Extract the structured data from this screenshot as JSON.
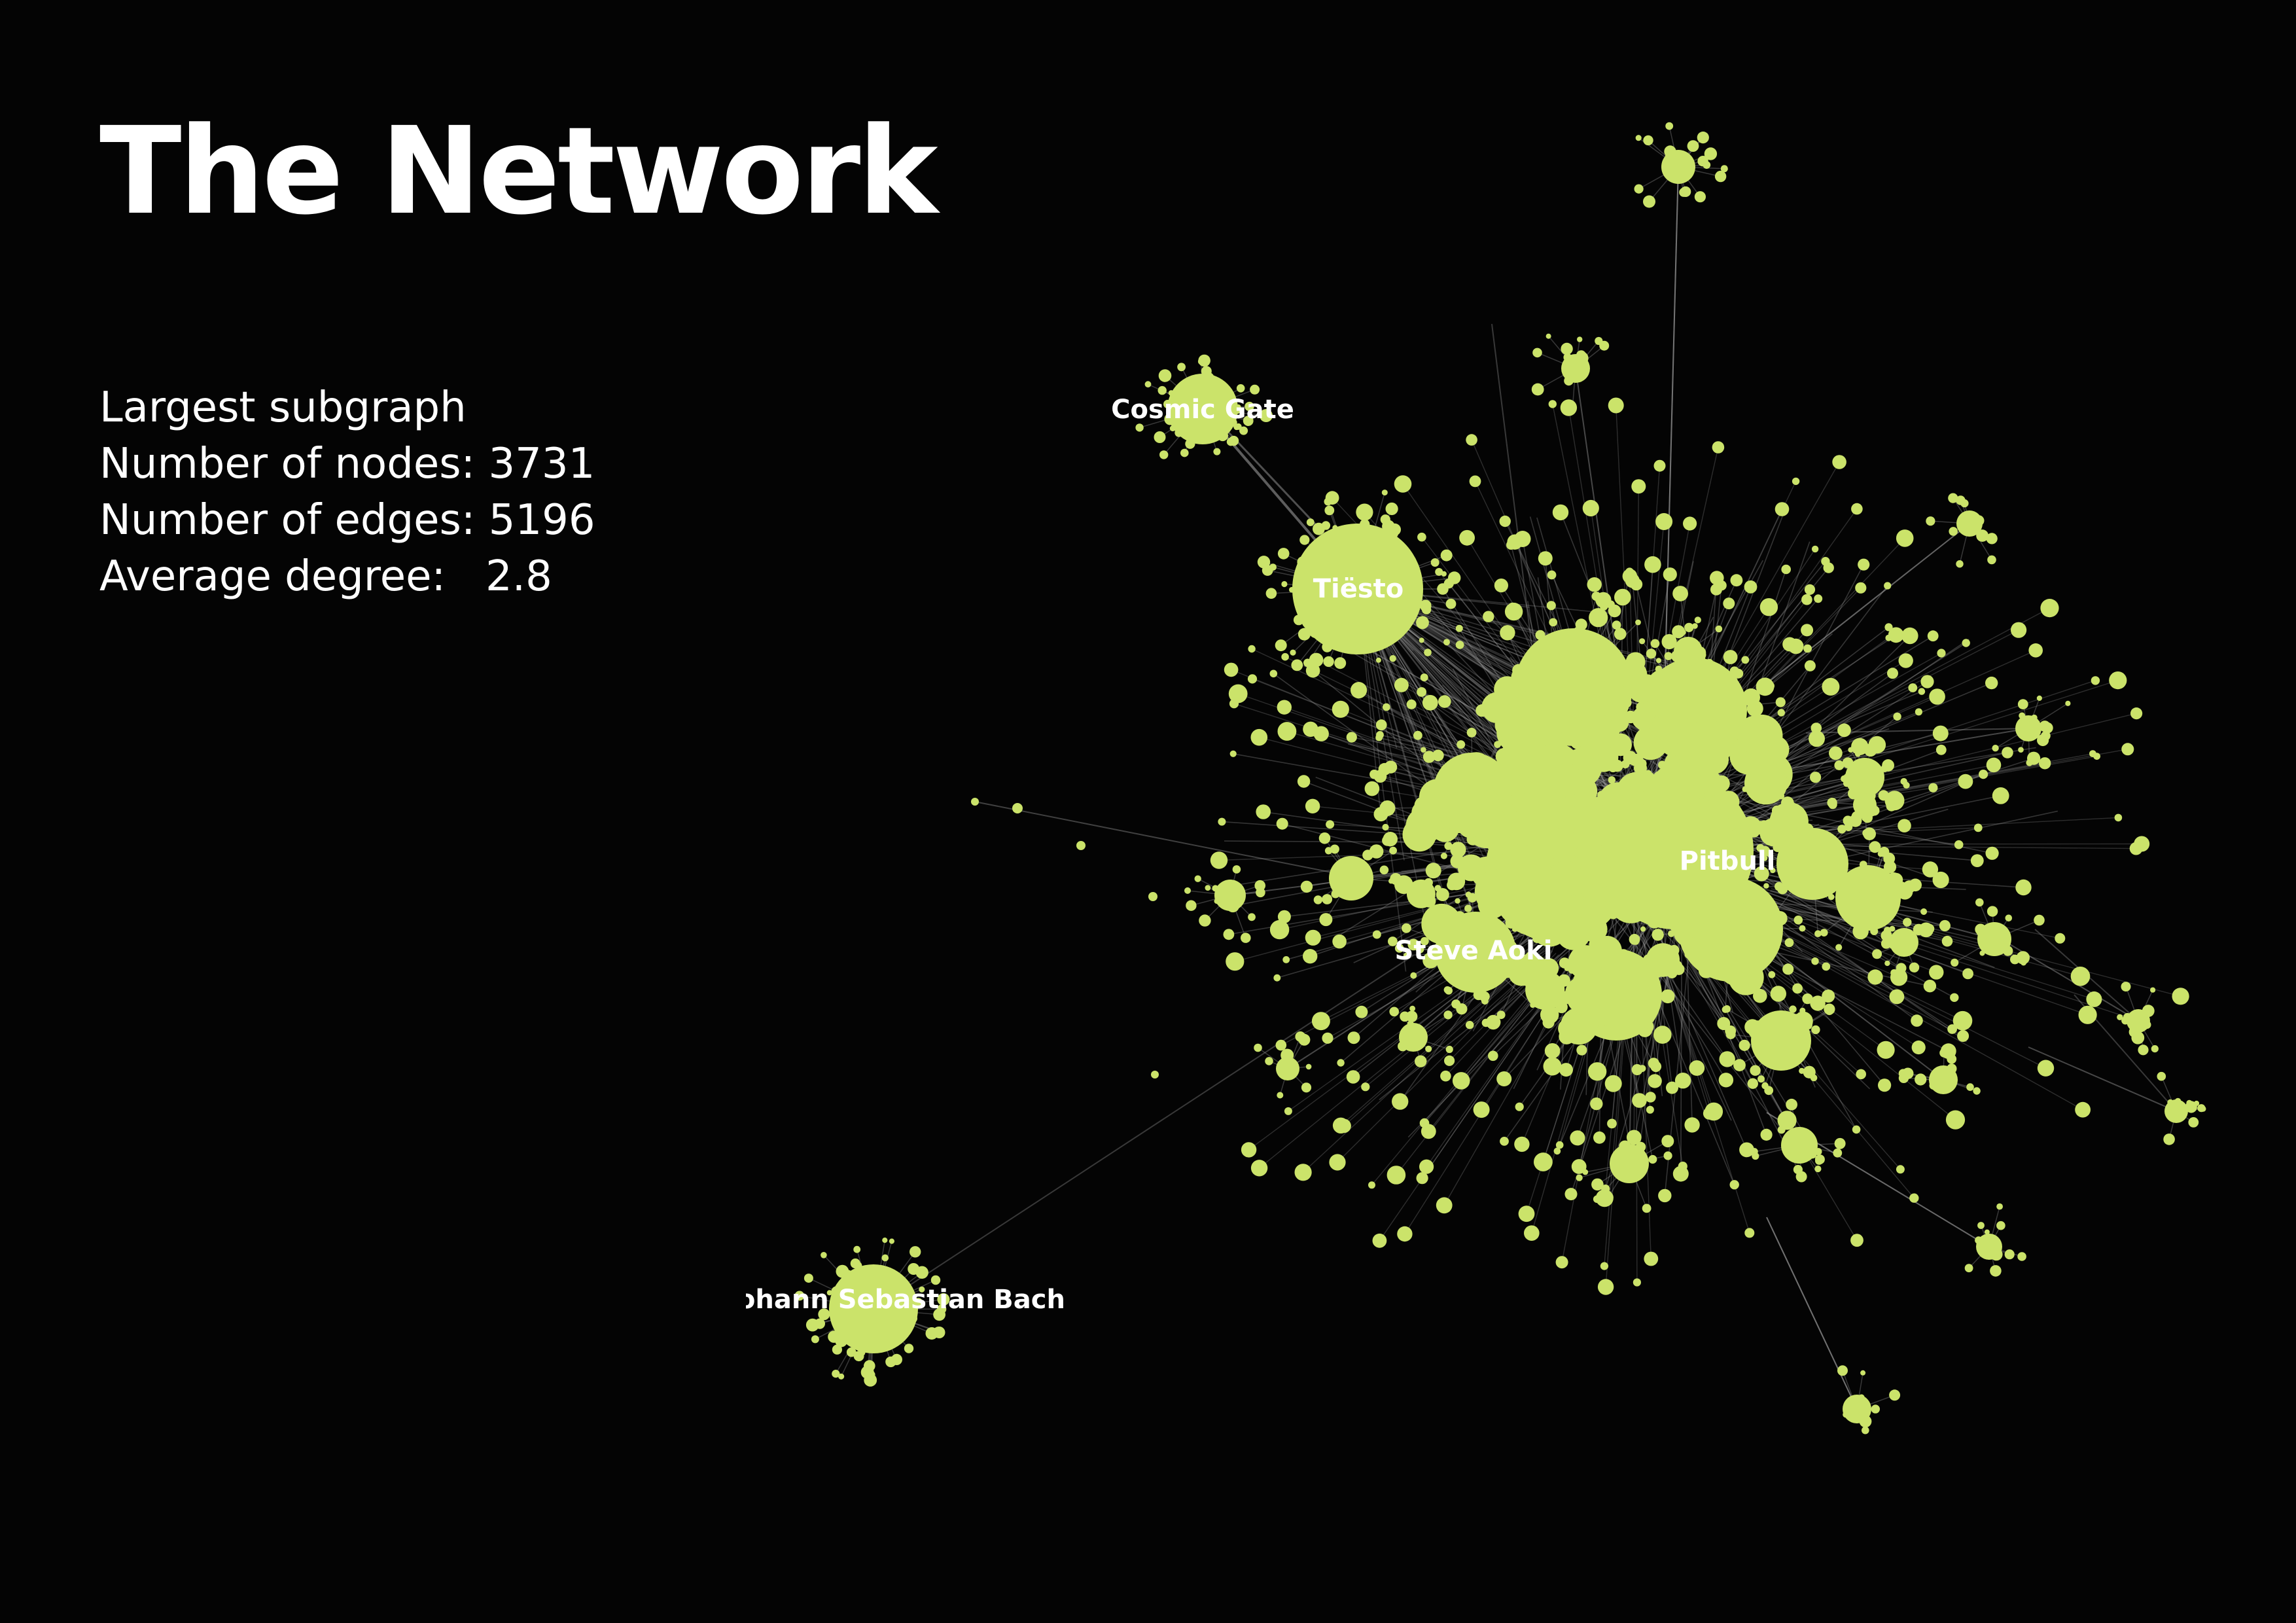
{
  "title": "The Network",
  "stats": [
    "Largest subgraph",
    "Number of nodes: 3731",
    "Number of edges: 5196",
    "Average degree:   2.8"
  ],
  "colors": {
    "background": "#040404",
    "node": "#cbe36a",
    "edge": "#9a9a9a",
    "text": "#ffffff"
  },
  "labels": [
    "Cosmic Gate",
    "Tiësto",
    "Pitbull",
    "Steve Aoki",
    "Johann Sebastian Bach"
  ]
}
